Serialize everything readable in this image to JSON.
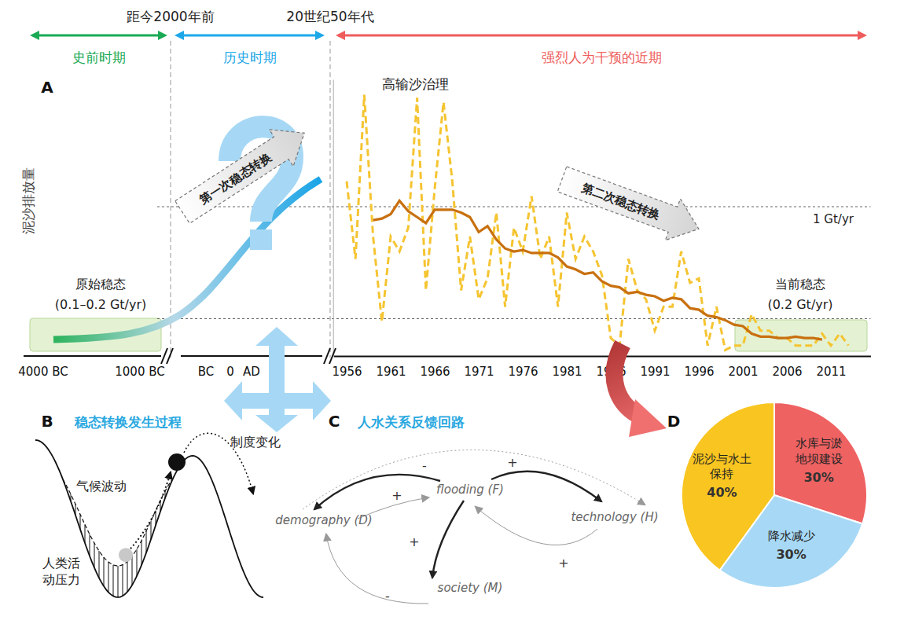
{
  "header": {
    "time_marks": [
      "距今2000年前",
      "20世纪50年代"
    ],
    "periods": [
      {
        "label": "史前时期",
        "color": "#1aaa55"
      },
      {
        "label": "历史时期",
        "color": "#1ca8e8"
      },
      {
        "label": "强烈人为干预的近期",
        "color": "#ee5c5c"
      }
    ]
  },
  "panel_a_early": {
    "early_ticks": [
      "4000 BC",
      "1000 BC",
      "BC",
      "0",
      "AD"
    ],
    "annotations": [
      "第一次稳态转换",
      "原始稳态",
      "(0.1–0.2 Gt/yr)"
    ]
  },
  "panel_b": {
    "label": "B",
    "title": "稳态转换发生过程",
    "labels": [
      "气候波动",
      "制度变化",
      "人类活\n动压力"
    ]
  },
  "panel_c": {
    "label": "C",
    "title": "人水关系反馈回路",
    "nodes": [
      {
        "id": "F",
        "label": "flooding (F)"
      },
      {
        "id": "D",
        "label": "demography (D)"
      },
      {
        "id": "H",
        "label": "technology (H)"
      },
      {
        "id": "M",
        "label": "society (M)"
      }
    ],
    "edges": [
      {
        "from": "F",
        "to": "D",
        "sign": "-",
        "line_style": "bold"
      },
      {
        "from": "D",
        "to": "F",
        "sign": "+",
        "line_style": "thin"
      },
      {
        "from": "F",
        "to": "H",
        "sign": "+",
        "line_style": "bold"
      },
      {
        "from": "F",
        "to": "M",
        "sign": "+",
        "line_style": "bold"
      },
      {
        "from": "M",
        "to": "D",
        "sign": "-",
        "line_style": "thin"
      },
      {
        "from": "H",
        "to": "F",
        "sign": "+",
        "line_style": "thin"
      },
      {
        "from": "D",
        "to": "H",
        "line_style": "dotted"
      }
    ]
  },
  "chart_data": [
    {
      "type": "line",
      "panel": "A",
      "y_label": "泥沙排放量",
      "x": [
        1956,
        1957,
        1958,
        1959,
        1960,
        1961,
        1962,
        1963,
        1964,
        1965,
        1966,
        1967,
        1968,
        1969,
        1970,
        1971,
        1972,
        1973,
        1974,
        1975,
        1976,
        1977,
        1978,
        1979,
        1980,
        1981,
        1982,
        1983,
        1984,
        1985,
        1986,
        1987,
        1988,
        1989,
        1990,
        1991,
        1992,
        1993,
        1994,
        1995,
        1996,
        1997,
        1998,
        1999,
        2000,
        2001,
        2002,
        2003,
        2004,
        2005,
        2006,
        2007,
        2008,
        2009,
        2010,
        2011,
        2012,
        2013
      ],
      "series": [
        {
          "color": "#f5c431",
          "line_style": "dashed",
          "values": [
            1.17,
            0.65,
            1.75,
            0.8,
            0.23,
            0.8,
            0.7,
            0.86,
            1.73,
            0.44,
            1.12,
            1.7,
            1.17,
            0.44,
            0.8,
            0.38,
            0.52,
            0.96,
            0.33,
            0.86,
            0.7,
            1.07,
            0.65,
            0.8,
            0.33,
            0.96,
            0.65,
            0.8,
            0.7,
            0.54,
            0.12,
            0.07,
            0.65,
            0.44,
            0.38,
            0.17,
            0.33,
            0.33,
            0.7,
            0.49,
            0.52,
            0.07,
            0.33,
            0.04,
            0.07,
            0.07,
            0.28,
            0.17,
            0.17,
            0.12,
            0.12,
            0.07,
            0.07,
            0.07,
            0.15,
            0.07,
            0.15,
            0.07
          ]
        },
        {
          "color": "#c8700f",
          "line_style": "solid",
          "values": [
            null,
            null,
            null,
            0.91,
            0.92,
            0.95,
            1.04,
            0.97,
            0.93,
            0.89,
            0.98,
            0.98,
            0.98,
            0.96,
            0.93,
            0.83,
            0.87,
            0.78,
            0.72,
            0.7,
            0.71,
            0.69,
            0.69,
            0.69,
            0.66,
            0.6,
            0.58,
            0.55,
            0.56,
            0.5,
            0.47,
            0.46,
            0.42,
            0.43,
            0.41,
            0.4,
            0.37,
            0.39,
            0.38,
            0.32,
            0.31,
            0.27,
            0.26,
            0.24,
            0.21,
            0.2,
            0.15,
            0.13,
            0.13,
            0.12,
            0.12,
            0.13,
            0.12,
            0.12,
            0.11,
            null,
            null,
            null
          ]
        }
      ],
      "xlim": [
        1954.5,
        2015.5
      ],
      "xticks": [
        1956,
        1961,
        1966,
        1971,
        1976,
        1981,
        1986,
        1991,
        1996,
        2001,
        2006,
        2011
      ],
      "ylim": [
        0,
        1.85
      ],
      "yticks": [
        0.25,
        1
      ],
      "grid": true,
      "tick_labels": "x",
      "annotations": [
        "1 Gt/yr",
        "高输沙治理",
        "第二次稳态转换",
        "当前稳态",
        "(0.2 Gt/yr)"
      ]
    },
    {
      "type": "pie",
      "panel": "D",
      "categories": [
        "水库与淤\n地坝建设",
        "降水减少",
        "泥沙与水土\n保持"
      ],
      "values": [
        30,
        30,
        40
      ],
      "value_labels": [
        "30%",
        "30%",
        "40%"
      ],
      "colors": [
        "#ef6262",
        "#a7d9f6",
        "#f9c520"
      ],
      "data_labels": true
    }
  ]
}
